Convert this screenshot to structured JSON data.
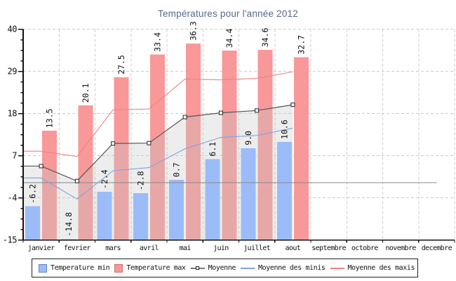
{
  "title": "Températures pour l'année 2012",
  "colors": {
    "title": "#566a8c",
    "axis": "#111111",
    "grid": "#cccccc",
    "zero_line": "#888888",
    "bar_min_fill": "#9bbcf8",
    "bar_min_border": "#6187cc",
    "bar_max_fill": "#f89898",
    "bar_max_border": "#cf7070",
    "area_fill": "rgba(200,200,200,0.32)",
    "line_moyenne": "#555555",
    "line_minis": "#7fa3e0",
    "line_maxis": "#ee8484",
    "marker_fill": "#ffffff",
    "marker_stroke": "#222222",
    "text": "#111111"
  },
  "chart_data": {
    "type": "bar",
    "title": "Températures pour l'année 2012",
    "xlabel": "",
    "ylabel": "",
    "ylim": [
      -15,
      40
    ],
    "yticks": [
      40,
      29,
      18,
      7,
      -4,
      -15
    ],
    "ytick_labels": [
      "40",
      "29",
      "18",
      "7",
      "-4",
      "-15"
    ],
    "minor_ticks_per_interval": 3,
    "grid": "dashed",
    "zero_line": true,
    "categories": [
      "janvier",
      "fevrier",
      "mars",
      "avril",
      "mai",
      "juin",
      "juillet",
      "aout",
      "septembre",
      "octobre",
      "novembre",
      "decembre"
    ],
    "months_with_data": 8,
    "series": [
      {
        "name": "Temperature min",
        "type": "bar",
        "values": [
          -6.2,
          -14.8,
          -2.4,
          -2.8,
          0.7,
          6.1,
          9.0,
          10.6
        ],
        "value_labels": [
          "-6.2",
          "-14.8",
          "-2.4",
          "-2.8",
          "0.7",
          "6.1",
          "9.0",
          "10.6"
        ]
      },
      {
        "name": "Temperature max",
        "type": "bar",
        "values": [
          13.5,
          20.1,
          27.5,
          33.4,
          36.3,
          34.4,
          34.6,
          32.7
        ],
        "value_labels": [
          "13.5",
          "20.1",
          "27.5",
          "33.4",
          "36.3",
          "34.4",
          "34.6",
          "32.7"
        ]
      },
      {
        "name": "Moyenne",
        "type": "line-area-markers",
        "values": [
          4.3,
          0.4,
          10.2,
          10.3,
          17.1,
          18.2,
          18.8,
          20.3
        ]
      },
      {
        "name": "Moyenne des minis",
        "type": "line",
        "values": [
          1.2,
          -4.3,
          3.1,
          3.9,
          8.8,
          11.8,
          12.3,
          14.2
        ]
      },
      {
        "name": "Moyenne des maxis",
        "type": "line",
        "values": [
          8.2,
          6.8,
          19.0,
          19.2,
          27.0,
          26.8,
          27.2,
          28.9
        ]
      }
    ],
    "legend_position": "bottom"
  },
  "legend": {
    "items": [
      {
        "label": "Temperature min",
        "swatch": "box",
        "color": "#9bbcf8",
        "border": "#6187cc"
      },
      {
        "label": "Temperature max",
        "swatch": "box",
        "color": "#f89898",
        "border": "#cf7070"
      },
      {
        "label": "Moyenne",
        "swatch": "line-marker",
        "color": "#777777"
      },
      {
        "label": "Moyenne des minis",
        "swatch": "line",
        "color": "#7fa3e0"
      },
      {
        "label": "Moyenne des maxis",
        "swatch": "line",
        "color": "#ee8484"
      }
    ]
  }
}
